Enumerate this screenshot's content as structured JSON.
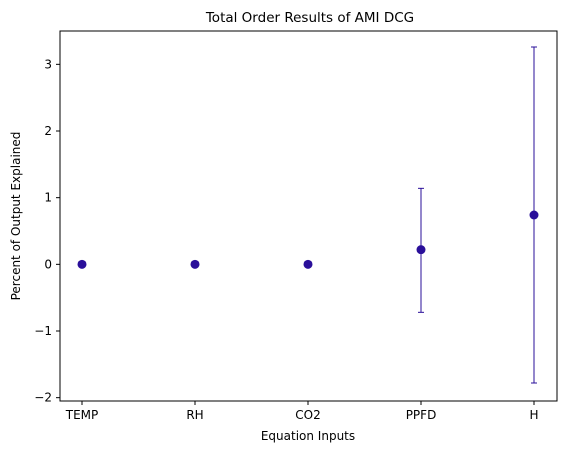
{
  "chart_data": {
    "type": "scatter",
    "title": "Total Order Results of AMI DCG",
    "xlabel": "Equation Inputs",
    "ylabel": "Percent of Output Explained",
    "categories": [
      "TEMP",
      "RH",
      "CO2",
      "PPFD",
      "H"
    ],
    "values": [
      0.0,
      0.0,
      0.0,
      0.22,
      0.74
    ],
    "error_low": [
      0.0,
      0.0,
      0.0,
      -0.72,
      -1.78
    ],
    "error_high": [
      0.0,
      0.0,
      0.0,
      1.14,
      3.26
    ],
    "ylim": [
      -2.05,
      3.5
    ],
    "yticks": [
      -2,
      -1,
      0,
      1,
      2,
      3
    ],
    "grid": false,
    "colors": {
      "marker": "#2a0f9a",
      "errorbar": "#2a0f9a"
    }
  }
}
